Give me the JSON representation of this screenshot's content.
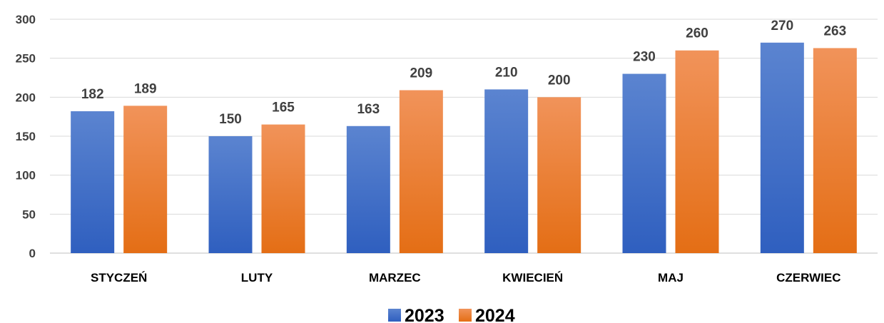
{
  "chart_data": {
    "type": "bar",
    "title": "",
    "xlabel": "",
    "ylabel": "",
    "categories": [
      "STYCZEŃ",
      "LUTY",
      "MARZEC",
      "KWIECIEŃ",
      "MAJ",
      "CZERWIEC"
    ],
    "series": [
      {
        "name": "2023",
        "values": [
          182,
          150,
          163,
          210,
          230,
          270
        ],
        "color": "#4472C4"
      },
      {
        "name": "2024",
        "values": [
          189,
          165,
          209,
          200,
          260,
          263
        ],
        "color": "#ED7D31"
      }
    ],
    "ylim": [
      0,
      300
    ],
    "yticks": [
      0,
      50,
      100,
      150,
      200,
      250,
      300
    ],
    "grid": true,
    "legend": "bottom"
  }
}
